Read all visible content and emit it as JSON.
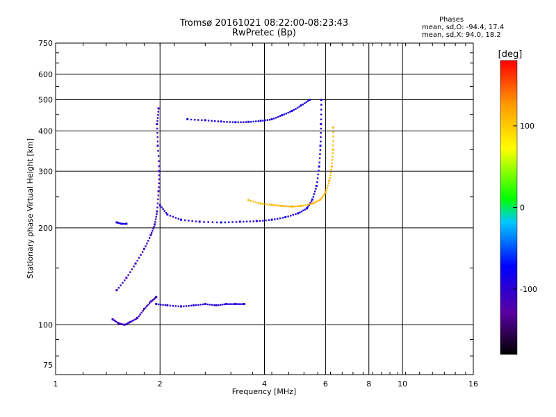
{
  "chart_data": {
    "type": "scatter",
    "title": "Tromsø 20161021 08:22:00-08:23:43",
    "subtitle": "RwPretec (Bp)",
    "xlabel": "Frequency [MHz]",
    "ylabel": "Stationary phase Virtual Height [km]",
    "x_scale": "log",
    "y_scale": "log",
    "xlim": [
      1,
      16
    ],
    "ylim": [
      70,
      750
    ],
    "x_ticks": [
      "1",
      "2",
      "4",
      "6",
      "8",
      "10",
      "16"
    ],
    "y_ticks": [
      "750",
      "600",
      "500",
      "400",
      "300",
      "200",
      "100",
      "75"
    ],
    "grid": true,
    "legend": {
      "title": "Phases",
      "lines": [
        "mean, sd,O: -94.4, 17.4",
        "mean, sd,X:  94.0, 18.2"
      ]
    },
    "colorbar": {
      "label": "[deg]",
      "range": [
        -180,
        180
      ],
      "ticks": [
        "100",
        "0",
        "-100"
      ],
      "colors": [
        "#000000",
        "#5a00a0",
        "#0000ff",
        "#00c8ff",
        "#00ff00",
        "#ffff00",
        "#ff9a00",
        "#ff0000"
      ]
    },
    "series": [
      {
        "color_phase": -110,
        "points": [
          [
            1.46,
            104
          ],
          [
            1.52,
            101
          ],
          [
            1.58,
            100
          ],
          [
            1.64,
            102
          ],
          [
            1.72,
            105
          ],
          [
            1.8,
            112
          ],
          [
            1.88,
            118
          ],
          [
            1.95,
            122
          ]
        ]
      },
      {
        "color_phase": -95,
        "points": [
          [
            1.95,
            116
          ],
          [
            2.1,
            115
          ],
          [
            2.3,
            114
          ],
          [
            2.5,
            115
          ],
          [
            2.7,
            116
          ],
          [
            2.9,
            115
          ],
          [
            3.1,
            116
          ],
          [
            3.3,
            116
          ],
          [
            3.5,
            116
          ]
        ]
      },
      {
        "color_phase": -110,
        "points": [
          [
            1.5,
            128
          ],
          [
            1.6,
            140
          ],
          [
            1.7,
            155
          ],
          [
            1.8,
            172
          ],
          [
            1.88,
            190
          ],
          [
            1.93,
            205
          ],
          [
            1.96,
            225
          ],
          [
            1.98,
            260
          ],
          [
            1.99,
            300
          ],
          [
            1.97,
            360
          ],
          [
            1.96,
            420
          ],
          [
            1.98,
            470
          ]
        ]
      },
      {
        "color_phase": -90,
        "points": [
          [
            2.0,
            235
          ],
          [
            2.1,
            220
          ],
          [
            2.3,
            212
          ],
          [
            2.6,
            209
          ],
          [
            3.0,
            208
          ],
          [
            3.4,
            209
          ],
          [
            3.8,
            210
          ],
          [
            4.2,
            212
          ],
          [
            4.6,
            216
          ],
          [
            5.0,
            222
          ],
          [
            5.3,
            230
          ],
          [
            5.5,
            245
          ],
          [
            5.65,
            270
          ],
          [
            5.75,
            310
          ],
          [
            5.8,
            360
          ],
          [
            5.82,
            420
          ],
          [
            5.83,
            500
          ]
        ]
      },
      {
        "color_phase": -90,
        "points": [
          [
            2.4,
            435
          ],
          [
            2.7,
            432
          ],
          [
            3.0,
            428
          ],
          [
            3.3,
            426
          ],
          [
            3.6,
            427
          ],
          [
            3.9,
            430
          ],
          [
            4.2,
            435
          ],
          [
            4.5,
            448
          ],
          [
            4.8,
            462
          ],
          [
            5.1,
            480
          ],
          [
            5.4,
            500
          ]
        ]
      },
      {
        "color_phase": -90,
        "points": [
          [
            1.5,
            208
          ],
          [
            1.55,
            206
          ],
          [
            1.6,
            206
          ]
        ]
      },
      {
        "color_phase": 110,
        "points": [
          [
            3.6,
            244
          ],
          [
            3.9,
            238
          ],
          [
            4.2,
            236
          ],
          [
            4.5,
            234
          ],
          [
            4.8,
            233
          ],
          [
            5.1,
            234
          ],
          [
            5.5,
            238
          ],
          [
            5.8,
            245
          ],
          [
            6.0,
            258
          ],
          [
            6.15,
            280
          ],
          [
            6.25,
            310
          ],
          [
            6.3,
            350
          ],
          [
            6.32,
            410
          ]
        ]
      }
    ]
  }
}
